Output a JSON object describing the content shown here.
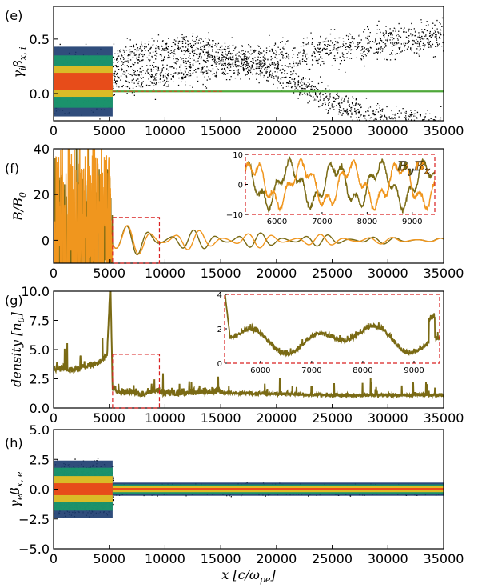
{
  "chart_data": [
    {
      "panel": "(e)",
      "type": "heatmap",
      "ylabel": "γiβx,i",
      "ylim": [
        -0.25,
        0.8
      ],
      "xlim": [
        0,
        35000
      ],
      "yticks": [
        "0.0",
        "0.5"
      ],
      "ytick_values": [
        0.0,
        0.5
      ],
      "xticks": [
        "0",
        "5000",
        "10000",
        "15000",
        "20000",
        "25000",
        "30000",
        "35000"
      ],
      "xtick_values": [
        0,
        5000,
        10000,
        15000,
        20000,
        25000,
        30000,
        35000
      ],
      "shock_x": 5300,
      "series": [
        {
          "x": [
            0,
            5300,
            35000
          ],
          "y": [
            0.05,
            0.02,
            0.02
          ]
        }
      ],
      "colors": {
        "core": "#e8401a",
        "mid": "#f0c020",
        "outer": "#1a9a6a",
        "edge": "#1a3a6e",
        "sparse": "#000000",
        "beam": "#4fa83a"
      }
    },
    {
      "panel": "(f)",
      "type": "line",
      "ylabel": "B/B0",
      "ylim": [
        -10,
        40
      ],
      "xlim": [
        0,
        35000
      ],
      "yticks": [
        "0",
        "20",
        "40"
      ],
      "ytick_values": [
        0,
        20,
        40
      ],
      "xticks": [
        "0",
        "5000",
        "10000",
        "15000",
        "20000",
        "25000",
        "30000",
        "35000"
      ],
      "xtick_values": [
        0,
        5000,
        10000,
        15000,
        20000,
        25000,
        30000,
        35000
      ],
      "series": [
        {
          "name": "By",
          "color": "#7a6a14",
          "x": [
            0,
            5000,
            5300,
            7000,
            10000,
            15000,
            20000,
            25000,
            30000,
            35000
          ],
          "amplitude": [
            20,
            20,
            6,
            7,
            5,
            4,
            3,
            2.5,
            1.5,
            1
          ]
        },
        {
          "name": "Bz",
          "color": "#f0961e",
          "x": [
            0,
            5000,
            5300,
            7000,
            10000,
            15000,
            20000,
            25000,
            30000,
            35000
          ],
          "amplitude": [
            25,
            25,
            6,
            7,
            5,
            4,
            3,
            2.5,
            1.5,
            1
          ]
        }
      ],
      "inset": {
        "xlim": [
          5300,
          9500
        ],
        "ylim": [
          -10,
          10
        ],
        "xticks": [
          "6000",
          "7000",
          "8000",
          "9000"
        ],
        "xtick_values": [
          6000,
          7000,
          8000,
          9000
        ],
        "yticks": [
          "−10",
          "0",
          "10"
        ],
        "ytick_values": [
          -10,
          0,
          10
        ]
      },
      "zoom_box": {
        "x": [
          5300,
          9500
        ],
        "y": [
          -10,
          10
        ]
      }
    },
    {
      "panel": "(g)",
      "type": "line",
      "ylabel": "density [n0]",
      "ylim": [
        0,
        10
      ],
      "xlim": [
        0,
        35000
      ],
      "yticks": [
        "0.0",
        "2.5",
        "5.0",
        "7.5",
        "10.0"
      ],
      "ytick_values": [
        0,
        2.5,
        5,
        7.5,
        10
      ],
      "xticks": [
        "0",
        "5000",
        "10000",
        "15000",
        "20000",
        "25000",
        "30000",
        "35000"
      ],
      "xtick_values": [
        0,
        5000,
        10000,
        15000,
        20000,
        25000,
        30000,
        35000
      ],
      "series": [
        {
          "color": "#7a6a14",
          "x": [
            0,
            1000,
            2000,
            3000,
            4000,
            4800,
            5100,
            5300,
            6000,
            7000,
            8000,
            9000,
            10000,
            15000,
            20000,
            25000,
            30000,
            35000
          ],
          "y": [
            3.5,
            3.4,
            3.3,
            3.6,
            3.8,
            4.5,
            11,
            1.5,
            1.0,
            1.2,
            0.9,
            1.3,
            1.0,
            1.2,
            1.1,
            1.0,
            1.0,
            1.0
          ]
        }
      ],
      "inset": {
        "xlim": [
          5300,
          9500
        ],
        "ylim": [
          0,
          4
        ],
        "xticks": [
          "6000",
          "7000",
          "8000",
          "9000"
        ],
        "xtick_values": [
          6000,
          7000,
          8000,
          9000
        ],
        "yticks": [
          "0",
          "2",
          "4"
        ],
        "ytick_values": [
          0,
          2,
          4
        ]
      },
      "zoom_box": {
        "x": [
          5300,
          9500
        ],
        "y": [
          0,
          4.6
        ]
      }
    },
    {
      "panel": "(h)",
      "type": "heatmap",
      "ylabel": "γeβx,e",
      "xlabel": "x [c/ωpe]",
      "ylim": [
        -5,
        5
      ],
      "xlim": [
        0,
        35000
      ],
      "yticks": [
        "−5.0",
        "−2.5",
        "0.0",
        "2.5",
        "5.0"
      ],
      "ytick_values": [
        -5,
        -2.5,
        0,
        2.5,
        5
      ],
      "xticks": [
        "0",
        "5000",
        "10000",
        "15000",
        "20000",
        "25000",
        "30000",
        "35000"
      ],
      "xtick_values": [
        0,
        5000,
        10000,
        15000,
        20000,
        25000,
        30000,
        35000
      ],
      "shock_x": 5300
    }
  ],
  "labels": {
    "e": "(e)",
    "f": "(f)",
    "g": "(g)",
    "h": "(h)",
    "ylab_e_main": "γ",
    "ylab_e_sub1": "i",
    "ylab_e_mid": "β",
    "ylab_e_sub2": "x, i",
    "ylab_f_main": "B/B",
    "ylab_f_sub": "0",
    "ylab_g": "density [n",
    "ylab_g_sub": "0",
    "ylab_g_end": "]",
    "ylab_h_main": "γ",
    "ylab_h_sub1": "e",
    "ylab_h_mid": "β",
    "ylab_h_sub2": "x, e",
    "xlab_main": "x [c/ω",
    "xlab_sub": "pe",
    "xlab_end": "]",
    "legend_by": "B",
    "legend_by_sub": "y",
    "legend_bz": "B",
    "legend_bz_sub": "z"
  }
}
